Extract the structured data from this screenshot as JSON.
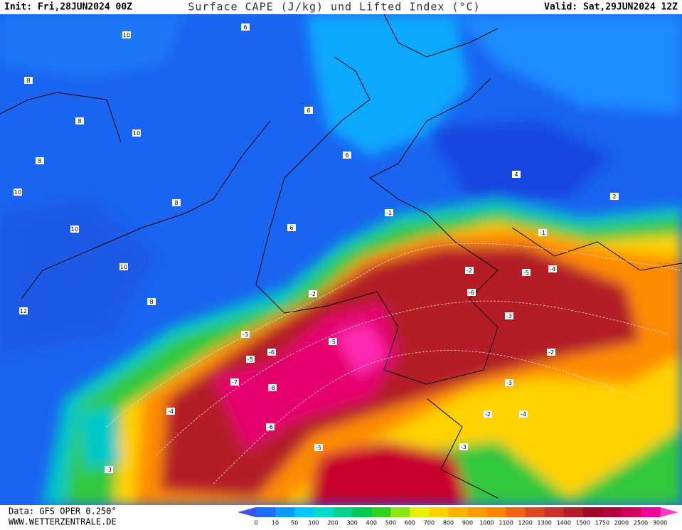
{
  "header": {
    "init": "Init: Fri,28JUN2024 00Z",
    "title": "Surface CAPE (J/kg) und Lifted Index (°C)",
    "valid": "Valid: Sat,29JUN2024 12Z"
  },
  "footer": {
    "data": "Data: GFS OPER 0.250°",
    "site": "WWW.WETTERZENTRALE.DE"
  },
  "colorbar": {
    "labels": [
      "0",
      "10",
      "50",
      "100",
      "200",
      "300",
      "400",
      "500",
      "600",
      "700",
      "800",
      "900",
      "1000",
      "1100",
      "1200",
      "1300",
      "1400",
      "1500",
      "1750",
      "2000",
      "2500",
      "3000"
    ],
    "under_color": "#3c50ff",
    "over_color": "#ff3cc8",
    "colors": [
      "#1e6eff",
      "#0a9bff",
      "#00c8ff",
      "#00dcc8",
      "#00d28c",
      "#00c850",
      "#32d21e",
      "#8ce614",
      "#e6f000",
      "#ffd200",
      "#ffb400",
      "#ff9b00",
      "#ff8200",
      "#f06414",
      "#e04620",
      "#c83228",
      "#b41e28",
      "#a00a28",
      "#b4003c",
      "#d2005a",
      "#f00096"
    ]
  },
  "contour_labels": [
    "10",
    "8",
    "10",
    "8",
    "8",
    "6",
    "6",
    "6",
    "10",
    "8",
    "10",
    "10",
    "12",
    "8",
    "6",
    "4",
    "2",
    "-1",
    "-2",
    "-3",
    "-5",
    "-6",
    "-7",
    "-8",
    "-5",
    "-4",
    "-3",
    "-2",
    "-6",
    "-5",
    "-3",
    "-4",
    "-2",
    "-1",
    "-3",
    "-4",
    "-2",
    "-3",
    "-5",
    "-6"
  ]
}
